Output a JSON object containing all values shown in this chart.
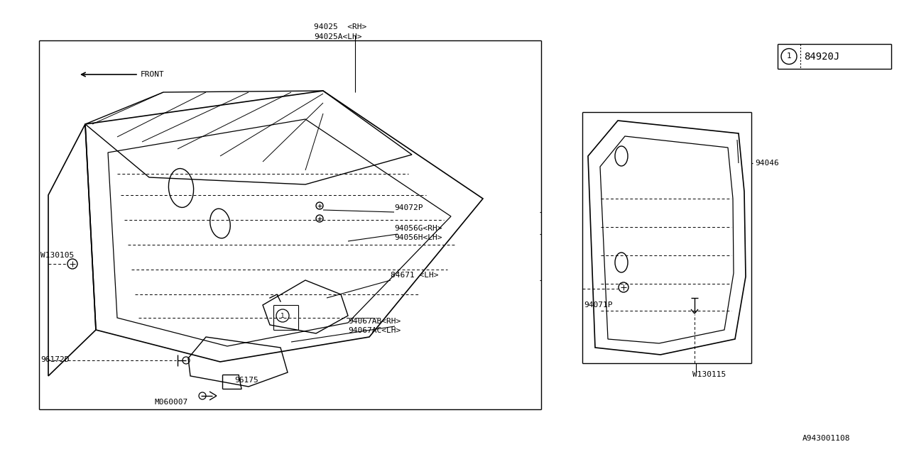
{
  "bg_color": "#ffffff",
  "line_color": "#000000",
  "fig_width": 12.8,
  "fig_height": 6.4,
  "dpi": 100,
  "labels": {
    "top_center_1": "94025  <RH>",
    "top_center_2": "94025A<LH>",
    "lbl_94072P": "94072P",
    "lbl_94056G": "94056G<RH>",
    "lbl_94056H": "94056H<LH>",
    "lbl_84671": "84671 <LH>",
    "lbl_94067AB": "94067AB<RH>",
    "lbl_94067AC": "94067AC<LH>",
    "lbl_W130105": "W130105",
    "lbl_96172D": "96172D",
    "lbl_96175": "96175",
    "lbl_M060007": "M060007",
    "lbl_94046": "94046",
    "lbl_94071P": "94071P",
    "lbl_W130115": "W130115",
    "lbl_box": "84920J",
    "lbl_bottom_right": "A943001108",
    "lbl_front": "FRONT"
  }
}
